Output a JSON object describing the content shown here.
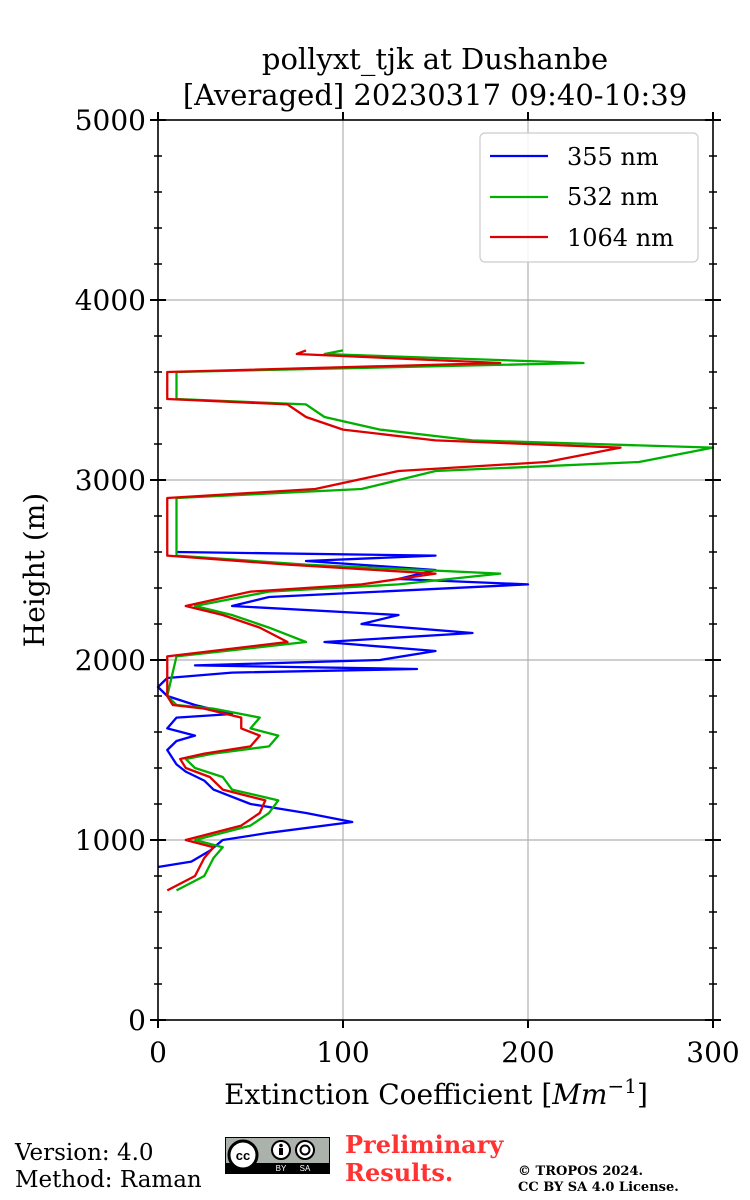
{
  "chart_data": {
    "type": "line",
    "title": "pollyxt_tjk at Dushanbe",
    "subtitle": "[Averaged] 20230317 09:40-10:39",
    "xlabel": "Extinction Coefficient [$Mm^{-1}$]",
    "xlabel_main": "Extinction Coefficient [",
    "xlabel_unit": "Mm",
    "xlabel_exp": "−1",
    "xlabel_close": "]",
    "ylabel": "Height (m)",
    "xlim": [
      0,
      300
    ],
    "ylim": [
      0,
      5000
    ],
    "xticks": [
      0,
      100,
      200,
      300
    ],
    "yticks": [
      0,
      1000,
      2000,
      3000,
      4000,
      5000
    ],
    "grid": true,
    "legend_position": "top-right",
    "series": [
      {
        "name": "355 nm",
        "color": "#0000ff",
        "points": [
          [
            0,
            850
          ],
          [
            18,
            880
          ],
          [
            28,
            940
          ],
          [
            35,
            1000
          ],
          [
            60,
            1040
          ],
          [
            105,
            1100
          ],
          [
            80,
            1150
          ],
          [
            50,
            1200
          ],
          [
            30,
            1280
          ],
          [
            25,
            1330
          ],
          [
            15,
            1380
          ],
          [
            10,
            1420
          ],
          [
            5,
            1500
          ],
          [
            10,
            1550
          ],
          [
            20,
            1580
          ],
          [
            5,
            1620
          ],
          [
            10,
            1680
          ],
          [
            40,
            1700
          ],
          [
            20,
            1750
          ],
          [
            5,
            1800
          ],
          [
            0,
            1850
          ],
          [
            5,
            1900
          ],
          [
            40,
            1930
          ],
          [
            140,
            1950
          ],
          [
            20,
            1970
          ],
          [
            120,
            2000
          ],
          [
            150,
            2050
          ],
          [
            90,
            2100
          ],
          [
            170,
            2150
          ],
          [
            110,
            2200
          ],
          [
            130,
            2250
          ],
          [
            40,
            2300
          ],
          [
            60,
            2350
          ],
          [
            200,
            2420
          ],
          [
            130,
            2450
          ],
          [
            150,
            2500
          ],
          [
            80,
            2550
          ],
          [
            150,
            2580
          ],
          [
            10,
            2600
          ]
        ]
      },
      {
        "name": "532 nm",
        "color": "#00b000",
        "points": [
          [
            10,
            720
          ],
          [
            25,
            800
          ],
          [
            30,
            900
          ],
          [
            35,
            960
          ],
          [
            20,
            1000
          ],
          [
            50,
            1080
          ],
          [
            60,
            1150
          ],
          [
            65,
            1220
          ],
          [
            40,
            1280
          ],
          [
            35,
            1350
          ],
          [
            20,
            1400
          ],
          [
            15,
            1450
          ],
          [
            30,
            1480
          ],
          [
            60,
            1520
          ],
          [
            65,
            1580
          ],
          [
            50,
            1620
          ],
          [
            55,
            1680
          ],
          [
            30,
            1730
          ],
          [
            10,
            1750
          ],
          [
            5,
            1800
          ],
          [
            10,
            2020
          ],
          [
            80,
            2100
          ],
          [
            60,
            2180
          ],
          [
            40,
            2250
          ],
          [
            20,
            2300
          ],
          [
            60,
            2380
          ],
          [
            130,
            2420
          ],
          [
            185,
            2480
          ],
          [
            80,
            2530
          ],
          [
            10,
            2580
          ],
          [
            10,
            2900
          ],
          [
            110,
            2950
          ],
          [
            150,
            3050
          ],
          [
            260,
            3100
          ],
          [
            300,
            3180
          ],
          [
            170,
            3220
          ],
          [
            120,
            3280
          ],
          [
            90,
            3350
          ],
          [
            80,
            3420
          ],
          [
            10,
            3450
          ],
          [
            10,
            3600
          ],
          [
            230,
            3650
          ],
          [
            90,
            3700
          ],
          [
            100,
            3720
          ]
        ]
      },
      {
        "name": "1064 nm",
        "color": "#dd0000",
        "points": [
          [
            5,
            720
          ],
          [
            20,
            800
          ],
          [
            25,
            900
          ],
          [
            30,
            960
          ],
          [
            15,
            1000
          ],
          [
            45,
            1080
          ],
          [
            55,
            1150
          ],
          [
            58,
            1220
          ],
          [
            35,
            1280
          ],
          [
            28,
            1350
          ],
          [
            15,
            1400
          ],
          [
            12,
            1450
          ],
          [
            25,
            1480
          ],
          [
            50,
            1520
          ],
          [
            55,
            1580
          ],
          [
            45,
            1620
          ],
          [
            45,
            1680
          ],
          [
            25,
            1730
          ],
          [
            8,
            1750
          ],
          [
            5,
            1800
          ],
          [
            5,
            2020
          ],
          [
            70,
            2100
          ],
          [
            55,
            2180
          ],
          [
            35,
            2250
          ],
          [
            15,
            2300
          ],
          [
            50,
            2380
          ],
          [
            110,
            2420
          ],
          [
            150,
            2480
          ],
          [
            70,
            2530
          ],
          [
            5,
            2580
          ],
          [
            5,
            2900
          ],
          [
            85,
            2950
          ],
          [
            130,
            3050
          ],
          [
            210,
            3100
          ],
          [
            250,
            3180
          ],
          [
            150,
            3220
          ],
          [
            100,
            3280
          ],
          [
            80,
            3350
          ],
          [
            70,
            3420
          ],
          [
            5,
            3450
          ],
          [
            5,
            3600
          ],
          [
            185,
            3650
          ],
          [
            75,
            3700
          ],
          [
            80,
            3720
          ]
        ]
      }
    ]
  },
  "footer": {
    "version": "Version: 4.0",
    "method": "Method: Raman",
    "preliminary_line1": "Preliminary",
    "preliminary_line2": "Results.",
    "copyright_line1": "© TROPOS 2024.",
    "copyright_line2": "CC BY SA 4.0 License.",
    "cc_badge_label": "cc",
    "cc_by": "BY",
    "cc_sa": "SA"
  }
}
